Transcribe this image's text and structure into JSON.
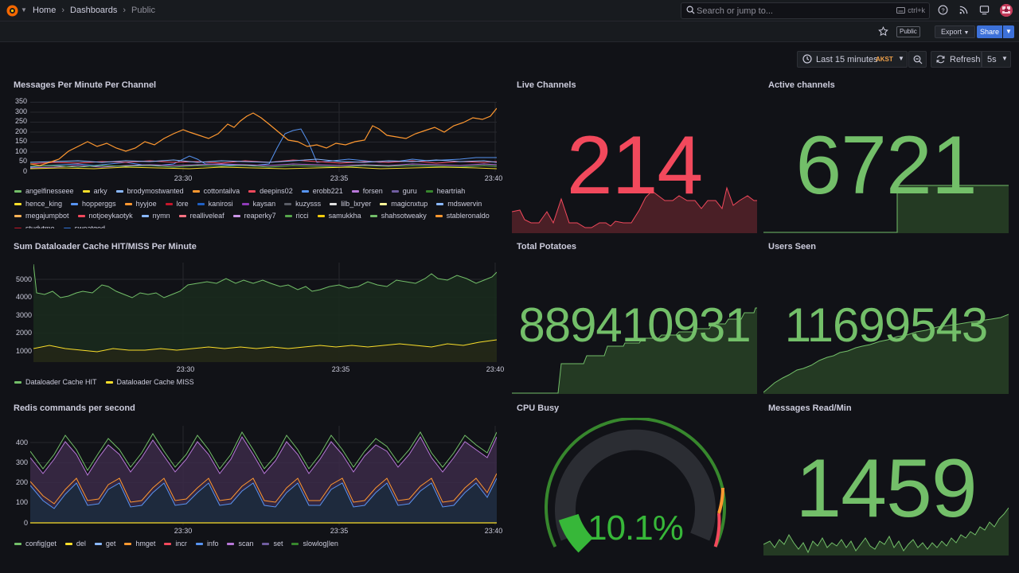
{
  "breadcrumb": {
    "home": "Home",
    "dashboards": "Dashboards",
    "current": "Public"
  },
  "search": {
    "placeholder": "Search or jump to...",
    "shortcut": "ctrl+k"
  },
  "toolbar": {
    "public_badge": "Public",
    "export_label": "Export",
    "share_label": "Share"
  },
  "timepicker": {
    "range": "Last 15 minutes",
    "timezone": "AKST",
    "refresh_label": "Refresh",
    "interval": "5s"
  },
  "colors": {
    "bg": "#111217",
    "green": "#73bf69",
    "red": "#f2495c",
    "orange": "#ff9830"
  },
  "panels": {
    "messages": {
      "title": "Messages Per Minute Per Channel",
      "yticks": [
        "350",
        "300",
        "250",
        "200",
        "150",
        "100",
        "50",
        "0"
      ],
      "xticks": [
        "23:30",
        "23:35",
        "23:40"
      ],
      "legend": [
        {
          "name": "angelfinesseee",
          "color": "#73bf69"
        },
        {
          "name": "arky",
          "color": "#fade2a"
        },
        {
          "name": "brodymostwanted",
          "color": "#8ab8ff"
        },
        {
          "name": "cottontailva",
          "color": "#ff9830"
        },
        {
          "name": "deepins02",
          "color": "#f2495c"
        },
        {
          "name": "erobb221",
          "color": "#5794f2"
        },
        {
          "name": "forsen",
          "color": "#b877d9"
        },
        {
          "name": "guru",
          "color": "#705da0"
        },
        {
          "name": "heartriah",
          "color": "#37872d"
        },
        {
          "name": "hence_king",
          "color": "#fade2a"
        },
        {
          "name": "hopperggs",
          "color": "#5794f2"
        },
        {
          "name": "hyyjoe",
          "color": "#ff9830"
        },
        {
          "name": "lore",
          "color": "#c4162a"
        },
        {
          "name": "kanirosi",
          "color": "#1f60c4"
        },
        {
          "name": "kaysan",
          "color": "#8f3bb8"
        },
        {
          "name": "kuzysss",
          "color": "#5a5d66"
        },
        {
          "name": "lilb_lxryer",
          "color": "#e0e0e0"
        },
        {
          "name": "magicnxtup",
          "color": "#fff899"
        },
        {
          "name": "mdswervin",
          "color": "#8ab8ff"
        },
        {
          "name": "megajumpbot",
          "color": "#ffb357"
        },
        {
          "name": "notjoeykaotyk",
          "color": "#f2495c"
        },
        {
          "name": "nymn",
          "color": "#8ab8ff"
        },
        {
          "name": "realliveleaf",
          "color": "#ff7383"
        },
        {
          "name": "reaperky7",
          "color": "#ca95e5"
        },
        {
          "name": "ricci",
          "color": "#56a64b"
        },
        {
          "name": "samukkha",
          "color": "#f2cc0c"
        },
        {
          "name": "shahsotweaky",
          "color": "#73bf69"
        },
        {
          "name": "stableronaldo",
          "color": "#ff9830"
        },
        {
          "name": "studytme",
          "color": "#c4162a"
        },
        {
          "name": "sweatgod",
          "color": "#3274d9"
        }
      ]
    },
    "live": {
      "title": "Live Channels",
      "value": "214"
    },
    "active": {
      "title": "Active channels",
      "value": "6721"
    },
    "cache": {
      "title": "Sum Dataloader Cache HIT/MISS Per Minute",
      "yticks": [
        "5000",
        "4000",
        "3000",
        "2000",
        "1000"
      ],
      "xticks": [
        "23:30",
        "23:35",
        "23:40"
      ],
      "legend": [
        {
          "name": "Dataloader Cache HIT",
          "color": "#73bf69"
        },
        {
          "name": "Dataloader Cache MISS",
          "color": "#fade2a"
        }
      ]
    },
    "potatoes": {
      "title": "Total Potatoes",
      "value": "889410931"
    },
    "users": {
      "title": "Users Seen",
      "value": "11699543"
    },
    "redis": {
      "title": "Redis commands per second",
      "yticks": [
        "400",
        "300",
        "200",
        "100",
        "0"
      ],
      "xticks": [
        "23:30",
        "23:35",
        "23:40"
      ],
      "legend": [
        {
          "name": "config|get",
          "color": "#73bf69"
        },
        {
          "name": "del",
          "color": "#fade2a"
        },
        {
          "name": "get",
          "color": "#8ab8ff"
        },
        {
          "name": "hmget",
          "color": "#ff9830"
        },
        {
          "name": "incr",
          "color": "#f2495c"
        },
        {
          "name": "info",
          "color": "#5794f2"
        },
        {
          "name": "scan",
          "color": "#b877d9"
        },
        {
          "name": "set",
          "color": "#705da0"
        },
        {
          "name": "slowlog|len",
          "color": "#37872d"
        }
      ]
    },
    "cpu": {
      "title": "CPU Busy",
      "value": "10.1%",
      "percent": 10.1
    },
    "msgread": {
      "title": "Messages Read/Min",
      "value": "1459"
    }
  }
}
